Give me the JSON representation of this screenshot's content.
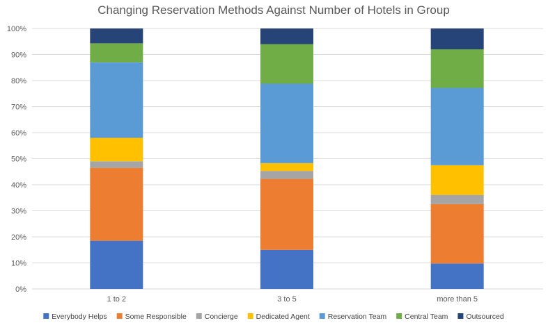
{
  "chart_data": {
    "type": "bar",
    "stacked": true,
    "normalized": true,
    "title": "Changing Reservation Methods Against Number of Hotels in Group",
    "xlabel": "",
    "ylabel": "",
    "ylim": [
      0,
      100
    ],
    "y_ticks": [
      "0%",
      "10%",
      "20%",
      "30%",
      "40%",
      "50%",
      "60%",
      "70%",
      "80%",
      "90%",
      "100%"
    ],
    "grid": true,
    "legend_position": "bottom",
    "categories": [
      "1 to 2",
      "3 to 5",
      "more than 5"
    ],
    "series": [
      {
        "name": "Everybody Helps",
        "color": "#4472c4",
        "values": [
          18.5,
          15.0,
          9.8
        ]
      },
      {
        "name": "Some Responsible",
        "color": "#ed7d31",
        "values": [
          28.0,
          27.3,
          22.8
        ]
      },
      {
        "name": "Concierge",
        "color": "#a5a5a5",
        "values": [
          2.5,
          3.0,
          3.5
        ]
      },
      {
        "name": "Dedicated Agent",
        "color": "#ffc000",
        "values": [
          9.0,
          3.0,
          11.4
        ]
      },
      {
        "name": "Reservation Team",
        "color": "#5b9bd5",
        "values": [
          29.0,
          30.5,
          29.7
        ]
      },
      {
        "name": "Central Team",
        "color": "#70ad47",
        "values": [
          7.3,
          15.2,
          14.8
        ]
      },
      {
        "name": "Outsourced",
        "color": "#264478",
        "values": [
          5.7,
          6.0,
          8.0
        ]
      }
    ]
  }
}
